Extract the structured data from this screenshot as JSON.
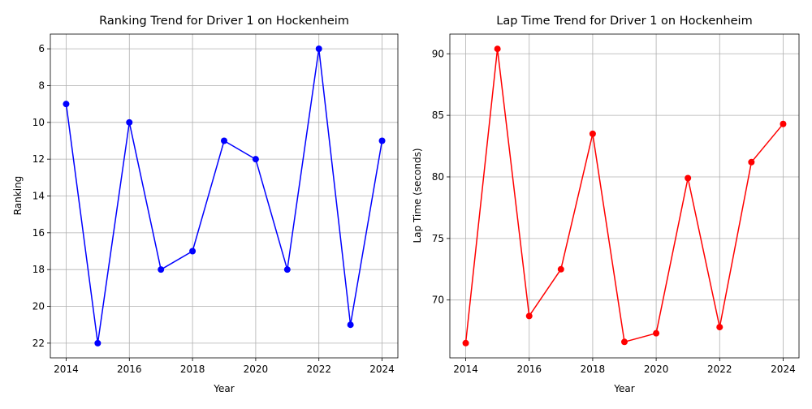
{
  "chart_data": [
    {
      "type": "line",
      "title": "Ranking Trend for Driver 1 on Hockenheim",
      "xlabel": "Year",
      "ylabel": "Ranking",
      "x": [
        2014,
        2015,
        2016,
        2017,
        2018,
        2019,
        2020,
        2021,
        2022,
        2023,
        2024
      ],
      "series": [
        {
          "values": [
            9,
            22,
            10,
            18,
            17,
            11,
            12,
            18,
            6,
            21,
            11
          ],
          "color": "#0000ff",
          "marker": "circle"
        }
      ],
      "xlim": [
        2013.5,
        2024.5
      ],
      "ylim": [
        22.8,
        5.2
      ],
      "y_inverted": true,
      "xticks": [
        2014,
        2016,
        2018,
        2020,
        2022,
        2024
      ],
      "yticks": [
        6,
        8,
        10,
        12,
        14,
        16,
        18,
        20,
        22
      ],
      "grid": true,
      "legend": "none"
    },
    {
      "type": "line",
      "title": "Lap Time Trend for Driver 1 on Hockenheim",
      "xlabel": "Year",
      "ylabel": "Lap Time (seconds)",
      "x": [
        2014,
        2015,
        2016,
        2017,
        2018,
        2019,
        2020,
        2021,
        2022,
        2023,
        2024
      ],
      "series": [
        {
          "values": [
            66.5,
            90.4,
            68.7,
            72.5,
            83.5,
            66.6,
            67.3,
            79.9,
            67.8,
            81.2,
            84.3
          ],
          "color": "#ff0000",
          "marker": "circle"
        }
      ],
      "xlim": [
        2013.5,
        2024.5
      ],
      "ylim": [
        65.3,
        91.6
      ],
      "y_inverted": false,
      "xticks": [
        2014,
        2016,
        2018,
        2020,
        2022,
        2024
      ],
      "yticks": [
        70,
        75,
        80,
        85,
        90
      ],
      "grid": true,
      "legend": "none"
    }
  ]
}
